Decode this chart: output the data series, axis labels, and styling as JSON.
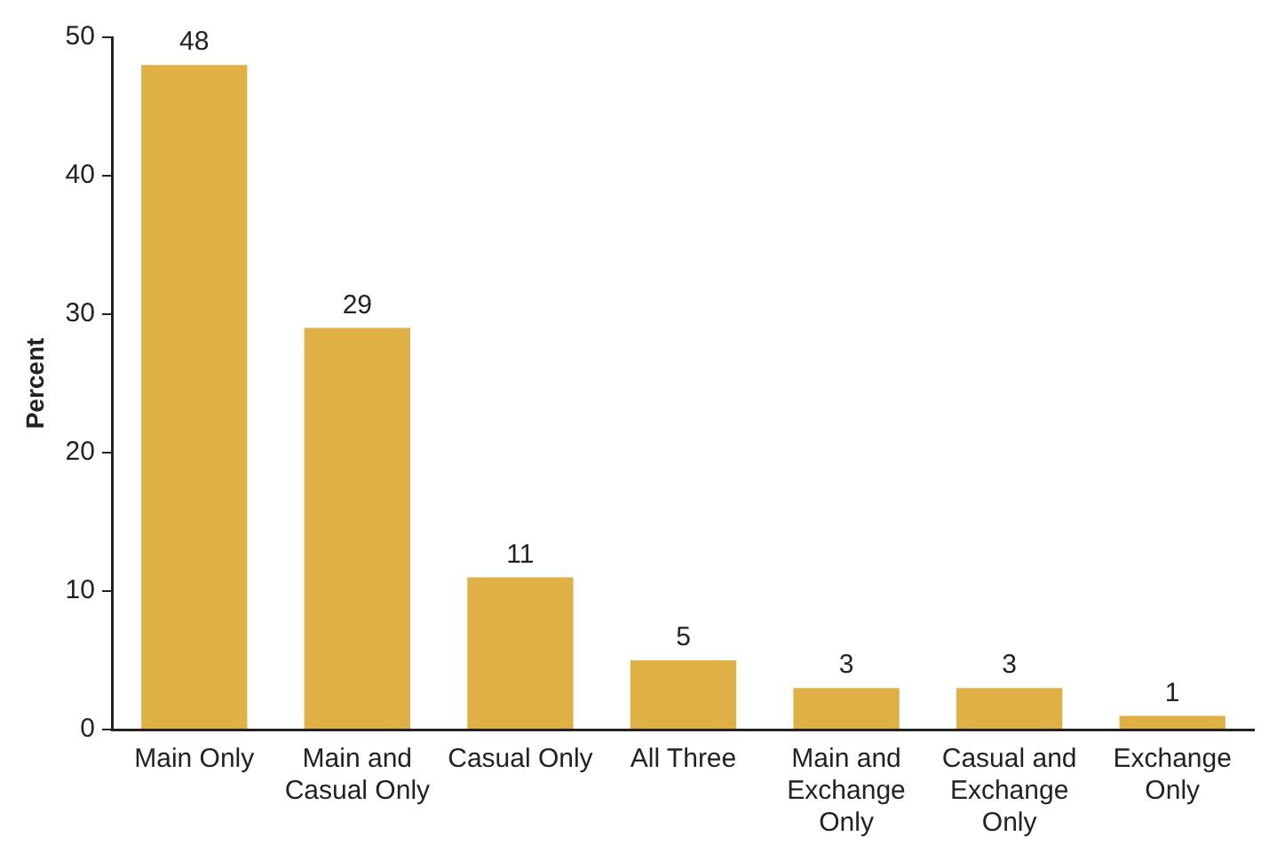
{
  "chart_data": {
    "type": "bar",
    "ylabel": "Percent",
    "categories": [
      "Main Only",
      "Main and Casual Only",
      "Casual Only",
      "All Three",
      "Main and Exchange Only",
      "Casual and Exchange Only",
      "Exchange Only"
    ],
    "values": [
      48,
      29,
      11,
      5,
      3,
      3,
      1
    ],
    "color": "#dfb046",
    "ylim": [
      0,
      50
    ],
    "yticks": [
      0,
      10,
      20,
      30,
      40,
      50
    ],
    "grid": false,
    "legend": false,
    "data_labels": true
  }
}
